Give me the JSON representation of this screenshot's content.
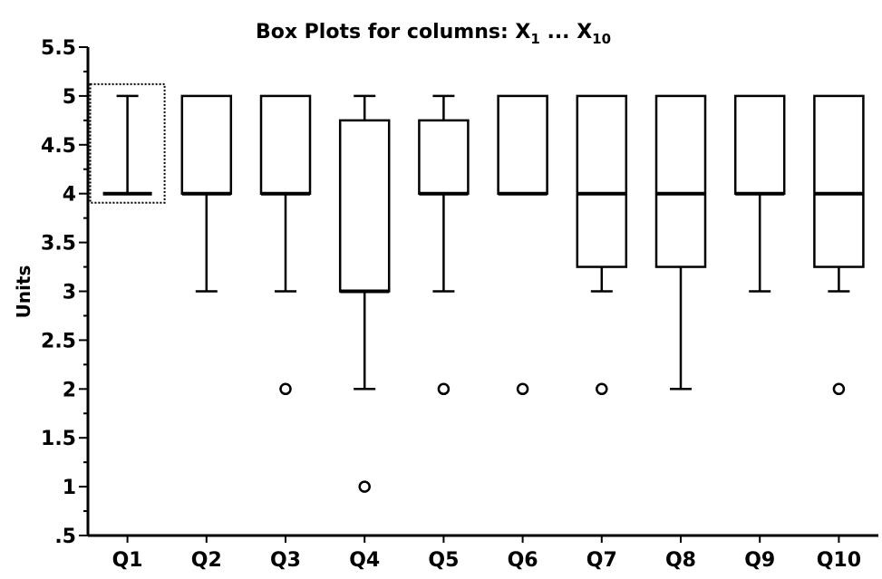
{
  "chart_data": {
    "type": "boxplot",
    "title": "Box Plots for columns: X",
    "title_sub_first": "1",
    "title_ellipsis": " ... X",
    "title_sub_last": "10",
    "ylabel": "Units",
    "xlabel": "",
    "ylim": [
      0.5,
      5.5
    ],
    "y_ticks": [
      ".5",
      "1",
      "1.5",
      "2",
      "2.5",
      "3",
      "3.5",
      "4",
      "4.5",
      "5",
      "5.5"
    ],
    "y_tick_values": [
      0.5,
      1,
      1.5,
      2,
      2.5,
      3,
      3.5,
      4,
      4.5,
      5,
      5.5
    ],
    "categories": [
      "Q1",
      "Q2",
      "Q3",
      "Q4",
      "Q5",
      "Q6",
      "Q7",
      "Q8",
      "Q9",
      "Q10"
    ],
    "boxes": [
      {
        "category": "Q1",
        "whisker_low": 4,
        "q1": 4,
        "median": 4,
        "q3": 4,
        "whisker_high": 5,
        "outliers": []
      },
      {
        "category": "Q2",
        "whisker_low": 3,
        "q1": 4,
        "median": 4,
        "q3": 5,
        "whisker_high": 5,
        "outliers": []
      },
      {
        "category": "Q3",
        "whisker_low": 3,
        "q1": 4,
        "median": 4,
        "q3": 5,
        "whisker_high": 5,
        "outliers": [
          2
        ]
      },
      {
        "category": "Q4",
        "whisker_low": 2,
        "q1": 3,
        "median": 3,
        "q3": 4.75,
        "whisker_high": 5,
        "outliers": [
          1
        ]
      },
      {
        "category": "Q5",
        "whisker_low": 3,
        "q1": 4,
        "median": 4,
        "q3": 4.75,
        "whisker_high": 5,
        "outliers": [
          2
        ]
      },
      {
        "category": "Q6",
        "whisker_low": 4,
        "q1": 4,
        "median": 4,
        "q3": 5,
        "whisker_high": 5,
        "outliers": [
          2
        ]
      },
      {
        "category": "Q7",
        "whisker_low": 3,
        "q1": 3.25,
        "median": 4,
        "q3": 5,
        "whisker_high": 5,
        "outliers": [
          2
        ]
      },
      {
        "category": "Q8",
        "whisker_low": 2,
        "q1": 3.25,
        "median": 4,
        "q3": 5,
        "whisker_high": 5,
        "outliers": []
      },
      {
        "category": "Q9",
        "whisker_low": 3,
        "q1": 4,
        "median": 4,
        "q3": 5,
        "whisker_high": 5,
        "outliers": []
      },
      {
        "category": "Q10",
        "whisker_low": 3,
        "q1": 3.25,
        "median": 4,
        "q3": 5,
        "whisker_high": 5,
        "outliers": [
          2
        ]
      }
    ],
    "selected_category": "Q1",
    "grid": false,
    "colors": {
      "stroke": "#000000",
      "background": "#ffffff"
    }
  }
}
